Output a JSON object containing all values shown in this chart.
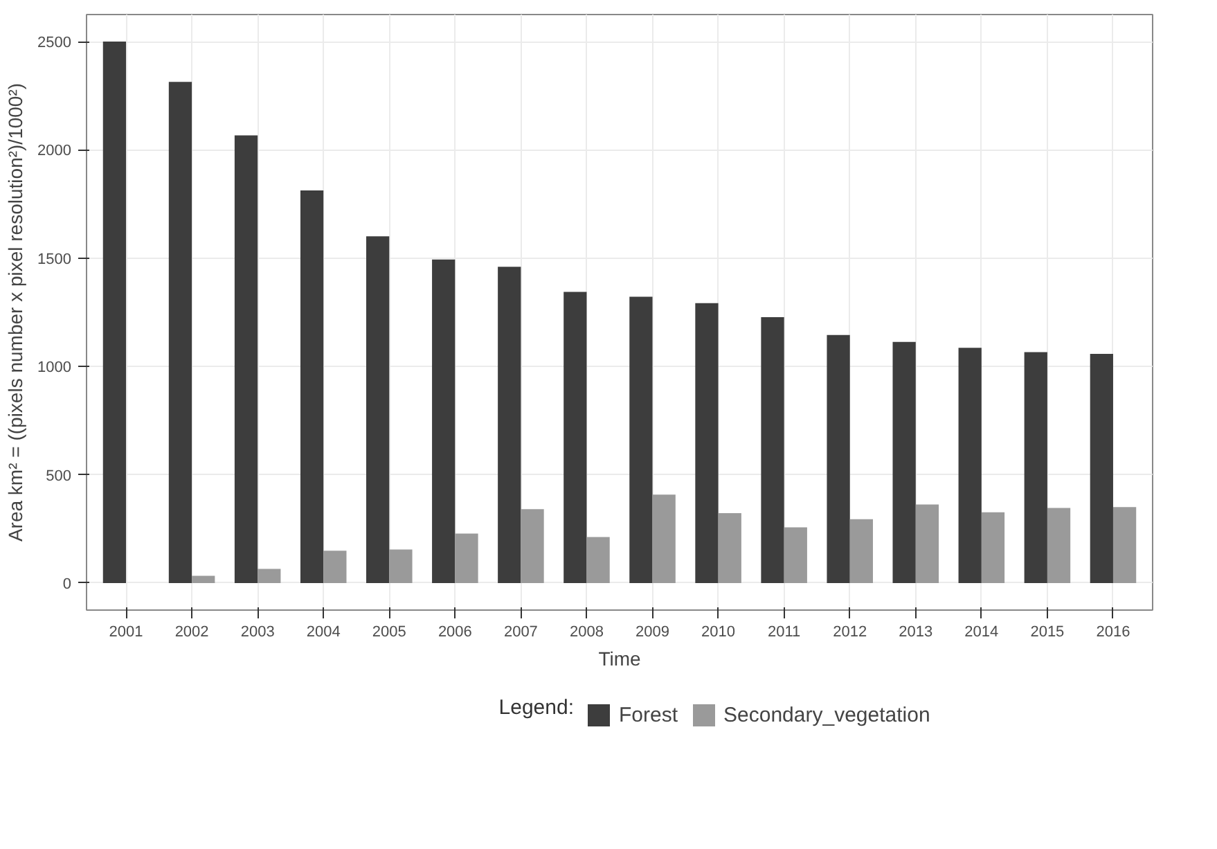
{
  "chart_data": {
    "type": "bar",
    "xlabel": "Time",
    "ylabel": "Area km² = ((pixels number x pixel resolution²)/1000²)",
    "legend_title": "Legend:",
    "categories": [
      "2001",
      "2002",
      "2003",
      "2004",
      "2005",
      "2006",
      "2007",
      "2008",
      "2009",
      "2010",
      "2011",
      "2012",
      "2013",
      "2014",
      "2015",
      "2016"
    ],
    "series": [
      {
        "name": "Forest",
        "color": "#3d3d3d",
        "values": [
          2500,
          2314,
          2067,
          1813,
          1601,
          1494,
          1460,
          1344,
          1322,
          1292,
          1228,
          1145,
          1113,
          1086,
          1066,
          1058
        ]
      },
      {
        "name": "Secondary_vegetation",
        "color": "#9a9a9a",
        "values": [
          0,
          33,
          65,
          149,
          155,
          228,
          341,
          212,
          408,
          323,
          257,
          295,
          363,
          327,
          347,
          351
        ]
      }
    ],
    "ylim": [
      -125,
      2625
    ],
    "yticks": [
      0,
      500,
      1000,
      1500,
      2000,
      2500
    ],
    "grid": true,
    "legend": "bottom"
  }
}
